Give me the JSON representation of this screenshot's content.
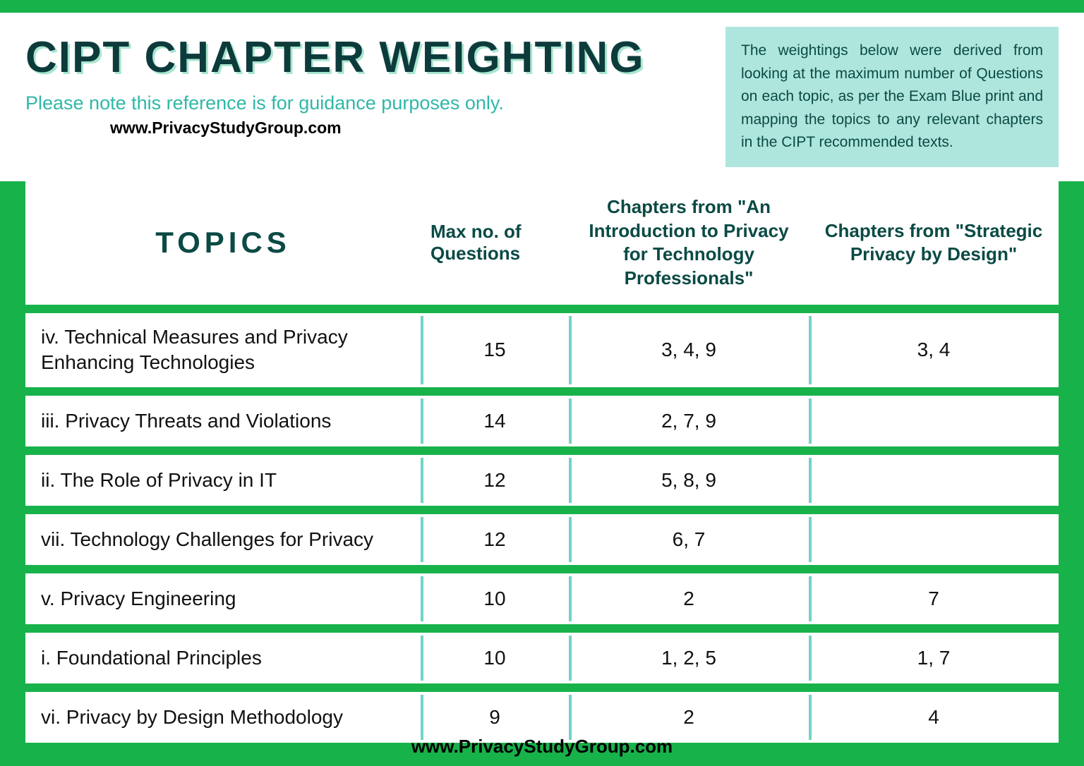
{
  "header": {
    "title": "CIPT CHAPTER WEIGHTING",
    "subtitle": "Please note this reference is for guidance purposes only.",
    "url": "www.PrivacyStudyGroup.com",
    "info_box": "The weightings below were derived from looking at the maximum number of Questions on each topic, as per the Exam Blue print and mapping the topics to any relevant chapters in the CIPT recommended texts."
  },
  "table": {
    "columns": {
      "topics": "TOPICS",
      "max_questions": "Max no. of Questions",
      "chapters_intro": "Chapters from  \"An Introduction to Privacy for Technology Professionals\"",
      "chapters_strategic": "Chapters from \"Strategic Privacy by Design\""
    },
    "rows": [
      {
        "topic": "iv. Technical Measures and Privacy Enhancing Technologies",
        "max_q": "15",
        "intro": "3, 4, 9",
        "strategic": "3, 4",
        "tall": true
      },
      {
        "topic": "iii. Privacy Threats and Violations",
        "max_q": "14",
        "intro": "2, 7, 9",
        "strategic": ""
      },
      {
        "topic": "ii. The Role of Privacy in IT",
        "max_q": "12",
        "intro": "5, 8, 9",
        "strategic": ""
      },
      {
        "topic": "vii. Technology Challenges for Privacy",
        "max_q": "12",
        "intro": "6, 7",
        "strategic": ""
      },
      {
        "topic": "v. Privacy Engineering",
        "max_q": "10",
        "intro": "2",
        "strategic": "7"
      },
      {
        "topic": "i. Foundational Principles",
        "max_q": "10",
        "intro": "1, 2, 5",
        "strategic": "1, 7"
      },
      {
        "topic": "vi. Privacy by Design Methodology",
        "max_q": "9",
        "intro": "2",
        "strategic": "4"
      }
    ]
  },
  "footer": {
    "url": "www.PrivacyStudyGroup.com"
  },
  "colors": {
    "green_bg": "#18b24b",
    "teal_light": "#aee6dd",
    "teal_text": "#2fb8a8",
    "dark_teal": "#0b4a45",
    "divider": "#6fd4c7",
    "white": "#ffffff"
  }
}
